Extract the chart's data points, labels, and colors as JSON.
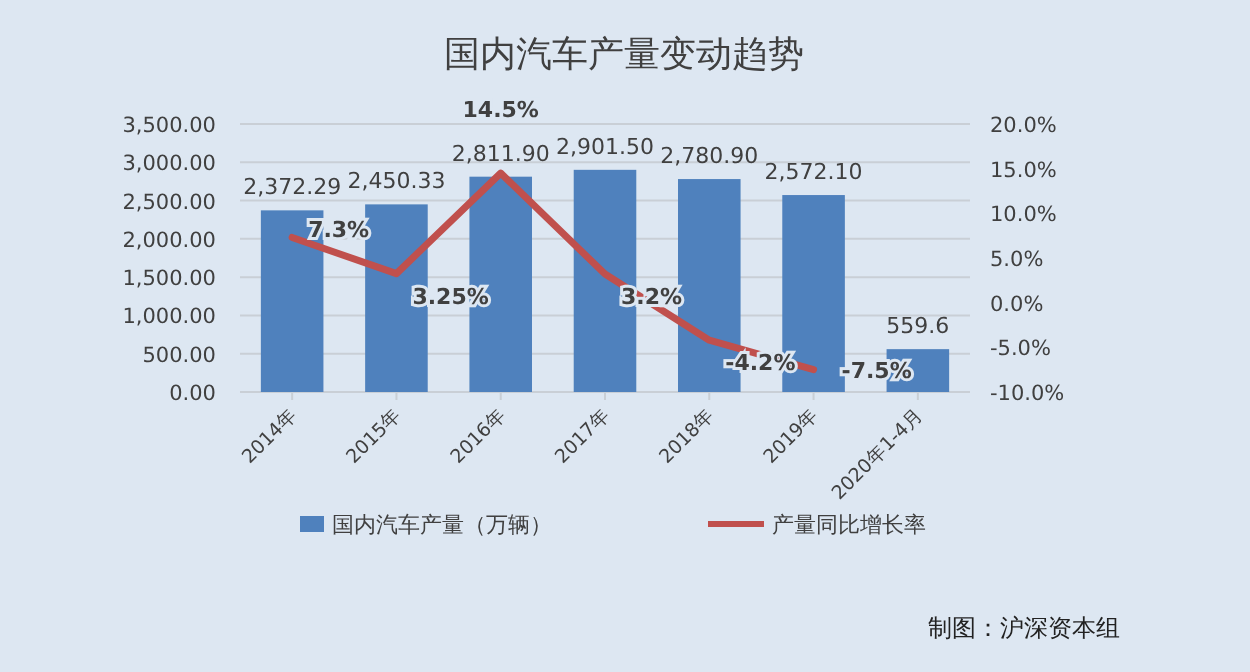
{
  "chart_data": {
    "type": "bar",
    "title": "国内汽车产量变动趋势",
    "categories": [
      "2014年",
      "2015年",
      "2016年",
      "2017年",
      "2018年",
      "2019年",
      "2020年1-4月"
    ],
    "series": [
      {
        "name": "国内汽车产量（万辆）",
        "color": "#4f81bd",
        "values": [
          2372.29,
          2450.33,
          2811.9,
          2901.5,
          2780.9,
          2572.1,
          559.6
        ],
        "value_labels": [
          "2,372.29",
          "2,450.33",
          "2,811.90",
          "2,901.50",
          "2,780.90",
          "2,572.10",
          "559.6"
        ]
      },
      {
        "name": "产量同比增长率",
        "type": "line",
        "axis": "y2",
        "color": "#c0504d",
        "values": [
          7.3,
          3.25,
          14.5,
          3.2,
          -4.2,
          -7.5,
          null
        ],
        "value_labels": [
          "7.3%",
          "3.25%",
          "14.5%",
          "3.2%",
          "-4.2%",
          "-7.5%",
          null
        ]
      }
    ],
    "ylim": [
      0,
      3500
    ],
    "yticks": [
      {
        "value": 0,
        "label": "0.00"
      },
      {
        "value": 500,
        "label": "500.00"
      },
      {
        "value": 1000,
        "label": "1,000.00"
      },
      {
        "value": 1500,
        "label": "1,500.00"
      },
      {
        "value": 2000,
        "label": "2,000.00"
      },
      {
        "value": 2500,
        "label": "2,500.00"
      },
      {
        "value": 3000,
        "label": "3,000.00"
      },
      {
        "value": 3500,
        "label": "3,500.00"
      }
    ],
    "y2lim": [
      -10,
      20
    ],
    "y2ticks": [
      {
        "value": -10,
        "label": "-10.0%"
      },
      {
        "value": -5,
        "label": "-5.0%"
      },
      {
        "value": 0,
        "label": "0.0%"
      },
      {
        "value": 5,
        "label": "5.0%"
      },
      {
        "value": 10,
        "label": "10.0%"
      },
      {
        "value": 15,
        "label": "15.0%"
      },
      {
        "value": 20,
        "label": "20.0%"
      }
    ],
    "grid": "y",
    "legend": "bottom",
    "annotations": [
      "制图：沪深资本组"
    ]
  }
}
